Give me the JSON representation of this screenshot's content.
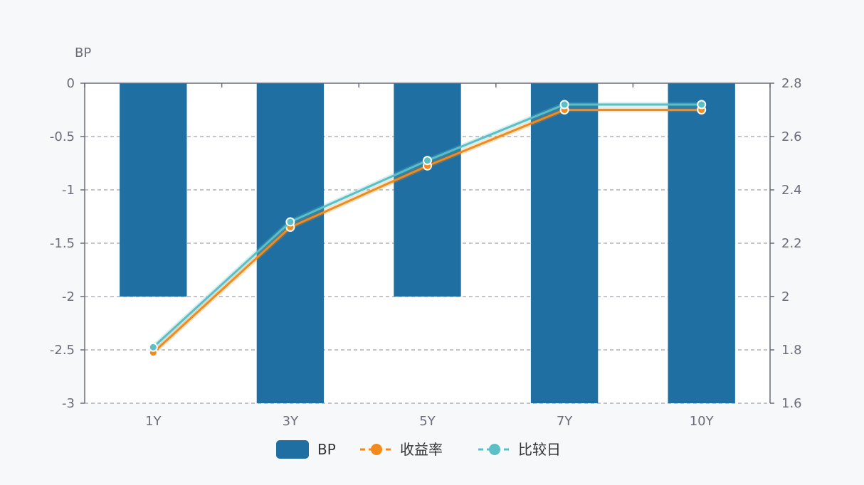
{
  "chart_data": {
    "type": "bar",
    "categories": [
      "1Y",
      "3Y",
      "5Y",
      "7Y",
      "10Y"
    ],
    "left_axis": {
      "label": "BP",
      "ylim": [
        -3,
        0
      ],
      "ticks": [
        0,
        -0.5,
        -1,
        -1.5,
        -2,
        -2.5,
        -3
      ],
      "tick_labels": [
        "0",
        "-0.5",
        "-1",
        "-1.5",
        "-2",
        "-2.5",
        "-3"
      ]
    },
    "right_axis": {
      "label": "",
      "ylim": [
        1.6,
        2.8
      ],
      "ticks": [
        2.8,
        2.6,
        2.4,
        2.2,
        2,
        1.8,
        1.6
      ],
      "tick_labels": [
        "2.8",
        "2.6",
        "2.4",
        "2.2",
        "2",
        "1.8",
        "1.6"
      ]
    },
    "series": [
      {
        "name": "BP",
        "type": "bar",
        "axis": "left",
        "values": [
          -2,
          -3,
          -2,
          -3,
          -3
        ],
        "color": "#1f6fa3"
      },
      {
        "name": "收益率",
        "type": "line",
        "axis": "right",
        "values": [
          1.79,
          2.26,
          2.49,
          2.7,
          2.7
        ],
        "color": "#f28a1c"
      },
      {
        "name": "比较日",
        "type": "line",
        "axis": "right",
        "values": [
          1.81,
          2.28,
          2.51,
          2.72,
          2.72
        ],
        "color": "#5bbfc6"
      }
    ],
    "grid": true,
    "legend_position": "bottom"
  }
}
